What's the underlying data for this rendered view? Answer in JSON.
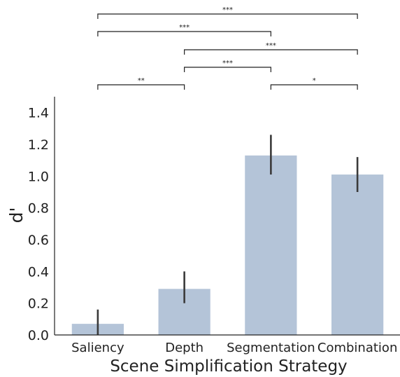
{
  "chart_data": {
    "type": "bar",
    "title": "",
    "xlabel": "Scene Simplification Strategy",
    "ylabel": "d'",
    "categories": [
      "Saliency",
      "Depth",
      "Segmentation",
      "Combination"
    ],
    "values": [
      0.07,
      0.29,
      1.13,
      1.01
    ],
    "error_low": [
      0.0,
      0.2,
      1.01,
      0.9
    ],
    "error_high": [
      0.16,
      0.4,
      1.26,
      1.12
    ],
    "ylim": [
      0,
      1.5
    ],
    "yticks": [
      "0.0",
      "0.2",
      "0.4",
      "0.6",
      "0.8",
      "1.0",
      "1.2",
      "1.4"
    ],
    "bar_color": "#b4c4d8",
    "error_color": "#3a3a3a",
    "grid": false,
    "legend": "none",
    "significance": [
      {
        "from": "Saliency",
        "to": "Combination",
        "label": "***"
      },
      {
        "from": "Saliency",
        "to": "Segmentation",
        "label": "***"
      },
      {
        "from": "Depth",
        "to": "Combination",
        "label": "***"
      },
      {
        "from": "Depth",
        "to": "Segmentation",
        "label": "***"
      },
      {
        "from": "Saliency",
        "to": "Depth",
        "label": "**"
      },
      {
        "from": "Segmentation",
        "to": "Combination",
        "label": "*"
      }
    ]
  }
}
